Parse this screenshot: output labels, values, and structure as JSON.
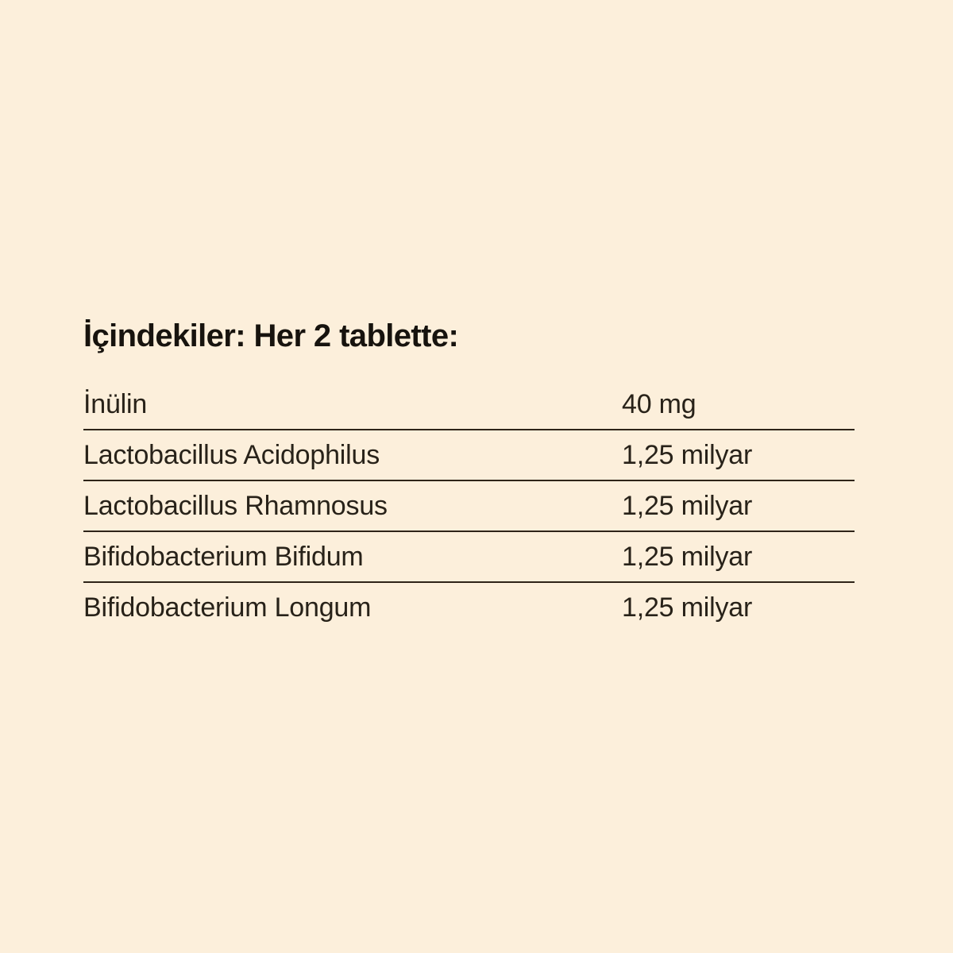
{
  "page": {
    "background_color": "#fcefdb",
    "heading_color": "#17130e",
    "body_text_color": "#282219",
    "divider_color": "#2e2418"
  },
  "panel": {
    "heading": "İçindekiler: Her 2 tablette:",
    "rows": [
      {
        "label": "İnülin",
        "value": "40 mg"
      },
      {
        "label": "Lactobacillus Acidophilus",
        "value": "1,25 milyar"
      },
      {
        "label": "Lactobacillus Rhamnosus",
        "value": "1,25 milyar"
      },
      {
        "label": "Bifidobacterium Bifidum",
        "value": "1,25 milyar"
      },
      {
        "label": "Bifidobacterium Longum",
        "value": "1,25 milyar"
      }
    ]
  }
}
